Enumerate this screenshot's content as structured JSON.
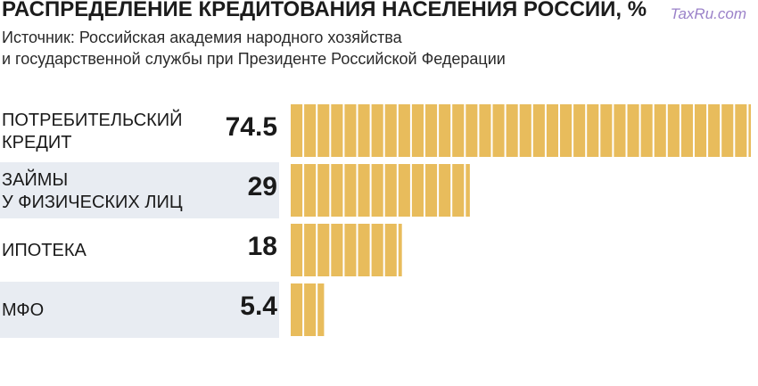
{
  "title": "РАСПРЕДЕЛЕНИЕ КРЕДИТОВАНИЯ НАСЕЛЕНИЯ РОССИИ, %",
  "watermark": "TaxRu.com",
  "source": {
    "line1": "Источник: Российская академия народного хозяйства",
    "line2": "и государственной службы при Президенте Российской Федерации"
  },
  "colors": {
    "bar": "#e8bc5c",
    "row_shade": "#e8ecf2"
  },
  "chart_data": {
    "type": "bar",
    "orientation": "horizontal",
    "title": "РАСПРЕДЕЛЕНИЕ КРЕДИТОВАНИЯ НАСЕЛЕНИЯ РОССИИ, %",
    "categories": [
      [
        "ПОТРЕБИТЕЛЬСКИЙ",
        "КРЕДИТ"
      ],
      [
        "ЗАЙМЫ",
        "У ФИЗИЧЕСКИХ ЛИЦ"
      ],
      [
        "ИПОТЕКА"
      ],
      [
        "МФО"
      ]
    ],
    "values": [
      74.5,
      29,
      18,
      5.4
    ],
    "value_labels": [
      "74.5",
      "29",
      "18",
      "5.4"
    ],
    "xlim": [
      0,
      74.5
    ],
    "grid": false,
    "legend": "none"
  }
}
